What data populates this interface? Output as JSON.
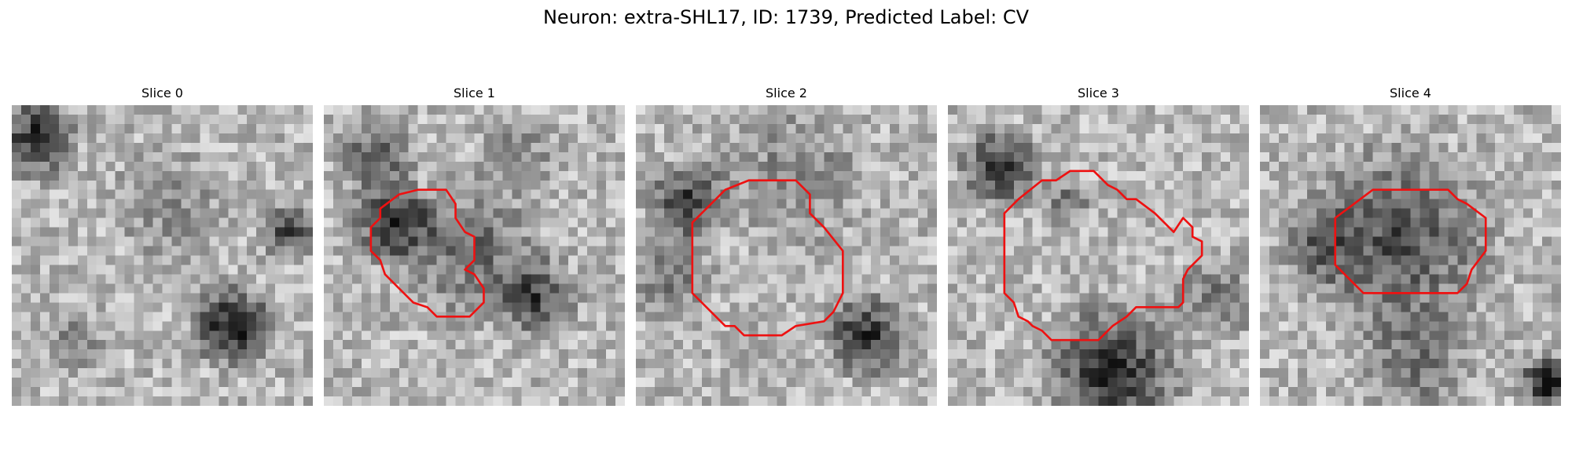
{
  "figure": {
    "title": "Neuron: extra-SHL17, ID: 1739, Predicted Label: CV",
    "outline_color": "#ee1111"
  },
  "panels": [
    {
      "title": "Slice 0",
      "has_outline": false
    },
    {
      "title": "Slice 1",
      "has_outline": true
    },
    {
      "title": "Slice 2",
      "has_outline": true
    },
    {
      "title": "Slice 3",
      "has_outline": true
    },
    {
      "title": "Slice 4",
      "has_outline": true
    }
  ]
}
